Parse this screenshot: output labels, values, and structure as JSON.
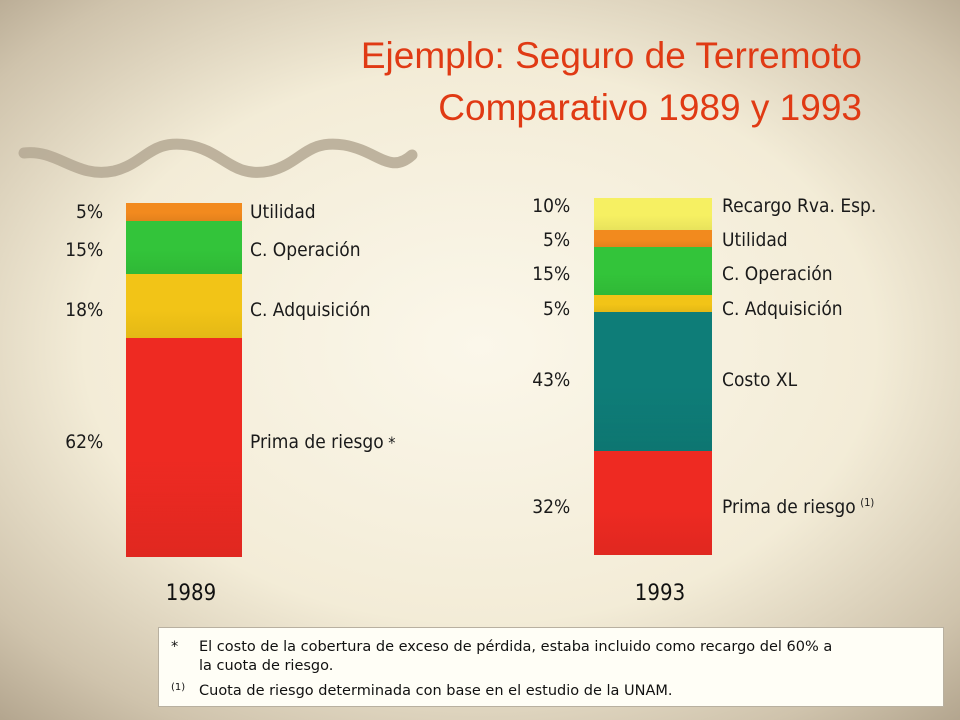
{
  "title_line1": "Ejemplo: Seguro de Terremoto",
  "title_line2": "Comparativo 1989 y 1993",
  "footnotes": [
    {
      "mark": "*",
      "lines": [
        "El costo de la cobertura de exceso de pérdida, estaba incluido como recargo del 60%  a",
        "la cuota de riesgo."
      ]
    },
    {
      "mark": "(1)",
      "lines": [
        "Cuota de riesgo determinada con base en el estudio de la UNAM."
      ]
    }
  ],
  "chart_data": {
    "type": "bar",
    "stacked": true,
    "categories": [
      "1989",
      "1993"
    ],
    "bars": [
      {
        "year": "1989",
        "segments": [
          {
            "percent_label": "62%",
            "label": "Prima de riesgo",
            "marker": "*",
            "value": 62,
            "color": "#ee2a22"
          },
          {
            "percent_label": "18%",
            "label": "C. Adquisición",
            "value": 18,
            "color": "#f2c417"
          },
          {
            "percent_label": "15%",
            "label": "C. Operación",
            "value": 15,
            "color": "#33c43a"
          },
          {
            "percent_label": "5%",
            "label": "Utilidad",
            "value": 5,
            "color": "#f28a1e"
          }
        ]
      },
      {
        "year": "1993",
        "segments": [
          {
            "percent_label": "32%",
            "label": "Prima de riesgo",
            "marker": "(1)",
            "value": 32,
            "color": "#ee2a22"
          },
          {
            "percent_label": "43%",
            "label": "Costo XL",
            "value": 43,
            "color": "#0e7d78"
          },
          {
            "percent_label": "5%",
            "label": "C. Adquisición",
            "value": 5,
            "color": "#f2c417"
          },
          {
            "percent_label": "15%",
            "label": "C. Operación",
            "value": 15,
            "color": "#33c43a"
          },
          {
            "percent_label": "5%",
            "label": "Utilidad",
            "value": 5,
            "color": "#f28a1e"
          },
          {
            "percent_label": "10%",
            "label": "Recargo Rva. Esp.",
            "value": 10,
            "color": "#f6f062"
          }
        ]
      }
    ],
    "colors": {
      "title": "#e03a14"
    }
  }
}
